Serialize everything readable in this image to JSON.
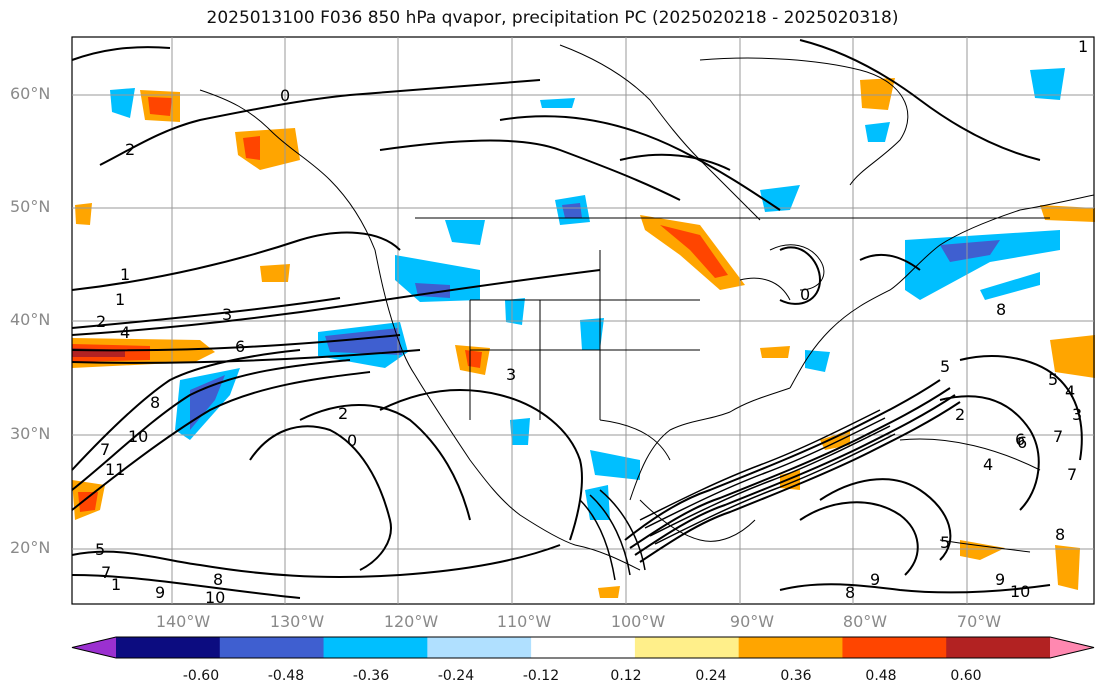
{
  "title": "2025013100 F036 850 hPa qvapor, precipitation PC (2025020218 - 2025020318)",
  "latitudes": [
    "60°N",
    "50°N",
    "40°N",
    "30°N",
    "20°N"
  ],
  "longitudes": [
    "140°W",
    "130°W",
    "120°W",
    "110°W",
    "100°W",
    "90°W",
    "80°W",
    "70°W"
  ],
  "colorbar": {
    "colors": [
      "#9b30d0",
      "#0c0c80",
      "#3f5fd0",
      "#00bfff",
      "#b0e0ff",
      "#ffffff",
      "#ffef8a",
      "#ffa500",
      "#ff4500",
      "#b22222",
      "#ff88b0"
    ],
    "ticks": [
      "-0.60",
      "-0.48",
      "-0.36",
      "-0.24",
      "-0.12",
      "0.12",
      "0.24",
      "0.36",
      "0.48",
      "0.60"
    ]
  },
  "contour_labels": [
    "0",
    "1",
    "1",
    "2",
    "2",
    "3",
    "3",
    "4",
    "6",
    "0",
    "2",
    "0",
    "8",
    "10",
    "11",
    "7",
    "8",
    "9",
    "10",
    "7",
    "1",
    "8",
    "5",
    "4",
    "3",
    "6",
    "7",
    "5",
    "8",
    "9",
    "10",
    "2",
    "5",
    "7",
    "8",
    "9",
    "4",
    "5",
    "6",
    "1"
  ]
}
